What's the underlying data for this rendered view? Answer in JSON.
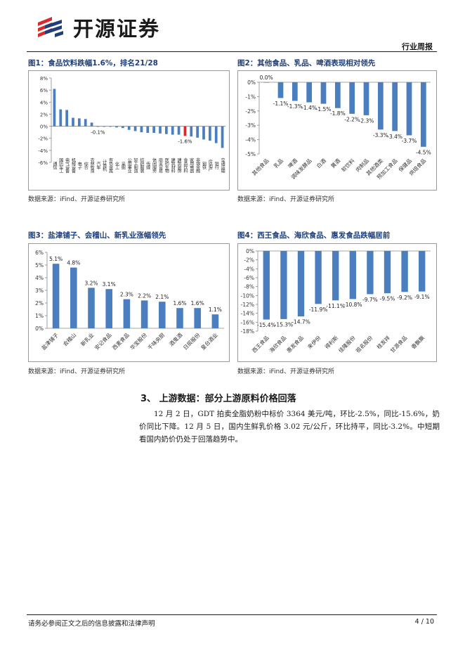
{
  "header": {
    "brand": "开源证券",
    "doc_type": "行业周报"
  },
  "figures": [
    {
      "id": "fig1",
      "title": "图1：食品饮料跌幅1.6%，排名21/28",
      "source": "数据来源：iFind、开源证券研究所",
      "chart_data": {
        "type": "bar",
        "title": "",
        "xlabel": "",
        "ylabel": "",
        "ylim": [
          -6,
          8
        ],
        "yticks": [
          -6,
          -4,
          -2,
          0,
          2,
          4,
          6,
          8
        ],
        "tick_format": "percent",
        "categories": [
          "通信",
          "国防军工",
          "电气设备",
          "机械设备",
          "电子",
          "综合",
          "农林牧渔",
          "汽车",
          "计算机",
          "有色金属",
          "化工",
          "采掘",
          "公用事业",
          "轻工制造",
          "纺织服装",
          "传媒",
          "休闲服务",
          "商业贸易",
          "医药生物",
          "建筑材料",
          "建筑装饰",
          "食品饮料",
          "家用电器",
          "非银金融",
          "钢铁",
          "房地产",
          "银行",
          "交通运输"
        ],
        "values": [
          6.2,
          2.8,
          2.7,
          1.4,
          1.3,
          1.2,
          0.6,
          -0.1,
          -0.1,
          -0.1,
          -0.2,
          -0.3,
          -0.6,
          -0.8,
          -1.0,
          -1.1,
          -1.1,
          -1.2,
          -1.3,
          -1.4,
          -1.4,
          -1.6,
          -1.7,
          -1.9,
          -2.2,
          -2.4,
          -2.8,
          -3.6
        ],
        "highlight_category": "食品饮料",
        "data_labels": [
          {
            "category": "汽车",
            "text": "-0.1%"
          },
          {
            "category": "食品饮料",
            "text": "-1.6%"
          }
        ],
        "colors": {
          "bar": "#4a7ebf",
          "highlight": "#d92b2b"
        }
      }
    },
    {
      "id": "fig2",
      "title": "图2：其他食品、乳品、啤酒表现相对领先",
      "source": "数据来源：iFind、开源证券研究所",
      "chart_data": {
        "type": "bar",
        "title": "",
        "xlabel": "",
        "ylabel": "",
        "ylim": [
          -5,
          0
        ],
        "yticks": [
          0,
          -1,
          -2,
          -3,
          -4,
          -5
        ],
        "tick_format": "percent",
        "categories": [
          "其他食品",
          "乳品",
          "啤酒",
          "调味发酵品",
          "白酒",
          "黄酒",
          "软饮料",
          "肉制品",
          "其他酒类",
          "预加工食品",
          "保健品",
          "烘焙食品"
        ],
        "values": [
          0.0,
          -1.1,
          -1.3,
          -1.4,
          -1.5,
          -1.8,
          -2.2,
          -2.3,
          -3.3,
          -3.4,
          -3.7,
          -4.5
        ],
        "data_labels": [
          "0.0%",
          "-1.1%",
          "-1.3%",
          "-1.4%",
          "-1.5%",
          "-1.8%",
          "-2.2%",
          "-2.3%",
          "-3.3%",
          "-3.4%",
          "-3.7%",
          "-4.5%"
        ],
        "colors": {
          "bar": "#4a7ebf"
        }
      }
    },
    {
      "id": "fig3",
      "title": "图3：盐津铺子、会稽山、新乳业涨幅领先",
      "source": "数据来源：iFind、开源证券研究所",
      "chart_data": {
        "type": "bar",
        "title": "",
        "xlabel": "",
        "ylabel": "",
        "ylim": [
          0,
          6
        ],
        "yticks": [
          0,
          1,
          2,
          3,
          4,
          5,
          6
        ],
        "tick_format": "percent",
        "categories": [
          "盐津铺子",
          "会稽山",
          "新乳业",
          "安记食品",
          "西麦食品",
          "华宝股份",
          "千味央厨",
          "酒鬼酒",
          "日辰股份",
          "皇台酒业"
        ],
        "values": [
          5.1,
          4.8,
          3.2,
          3.1,
          2.3,
          2.2,
          2.1,
          1.6,
          1.6,
          1.1
        ],
        "data_labels": [
          "5.1%",
          "4.8%",
          "3.2%",
          "3.1%",
          "2.3%",
          "2.2%",
          "2.1%",
          "1.6%",
          "1.6%",
          "1.1%"
        ],
        "colors": {
          "bar": "#4a7ebf"
        }
      }
    },
    {
      "id": "fig4",
      "title": "图4：西王食品、海欣食品、惠发食品跌幅居前",
      "source": "数据来源：iFind、开源证券研究所",
      "chart_data": {
        "type": "bar",
        "title": "",
        "xlabel": "",
        "ylabel": "",
        "ylim": [
          -18,
          0
        ],
        "yticks": [
          0,
          -2,
          -4,
          -6,
          -8,
          -10,
          -12,
          -14,
          -16,
          -18
        ],
        "tick_format": "percent",
        "categories": [
          "西王食品",
          "海欣食品",
          "惠发食品",
          "来伊份",
          "得利斯",
          "佳隆股份",
          "祖名股份",
          "桂发祥",
          "甘源食品",
          "香飘飘"
        ],
        "values": [
          -15.4,
          -15.3,
          -14.7,
          -11.9,
          -11.1,
          -10.8,
          -9.7,
          -9.5,
          -9.2,
          -9.1
        ],
        "data_labels": [
          "-15.4%",
          "-15.3%",
          "-14.7%",
          "-11.9%",
          "-11.1%",
          "-10.8%",
          "-9.7%",
          "-9.5%",
          "-9.2%",
          "-9.1%"
        ],
        "colors": {
          "bar": "#4a7ebf"
        }
      }
    }
  ],
  "section": {
    "heading": "3、 上游数据：部分上游原料价格回落",
    "paragraph": "12 月 2 日，GDT 拍卖全脂奶粉中标价 3364 美元/吨，环比-2.5%，同比-15.6%，奶价同比下降。12 月 5 日，国内生鲜乳价格 3.02 元/公斤，环比持平，同比-3.2%。中短期看国内奶价仍处于回落趋势中。"
  },
  "footer": {
    "disclaimer": "请务必参阅正文之后的信息披露和法律声明",
    "page": "4 / 10"
  }
}
